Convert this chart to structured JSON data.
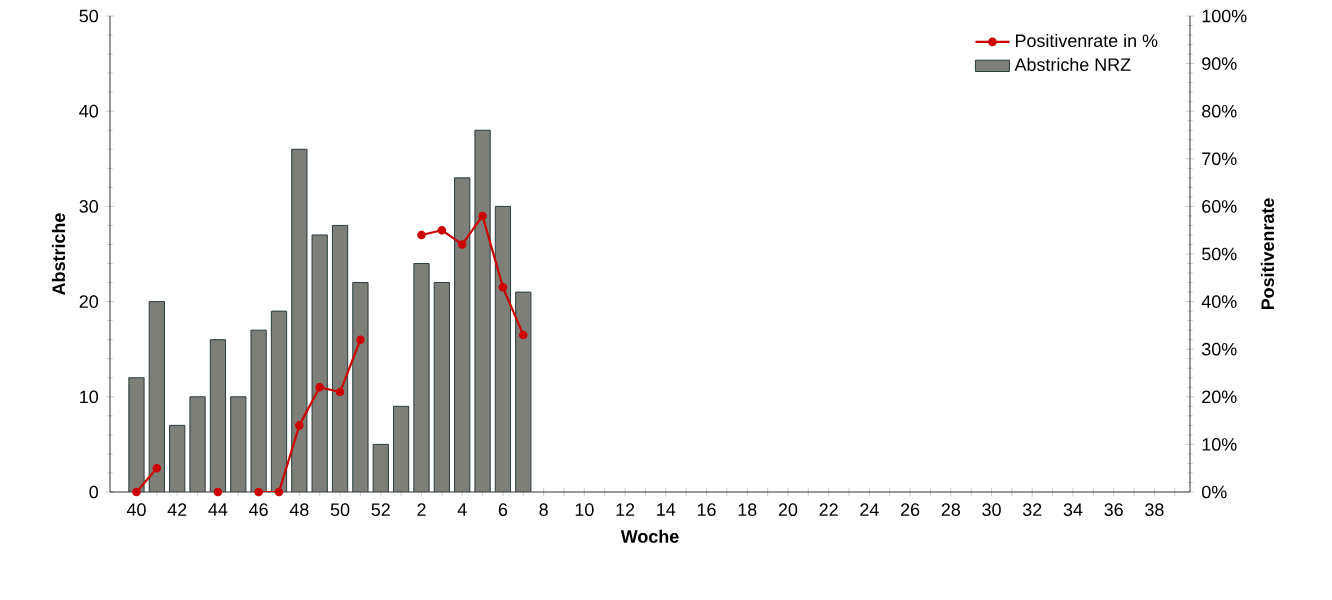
{
  "chart_data": {
    "type": "bar",
    "xlabel": "Woche",
    "ylabel": "Abstriche",
    "y2label": "Positivenrate",
    "categories": [
      "40",
      null,
      "42",
      null,
      "44",
      null,
      "46",
      null,
      "48",
      null,
      "50",
      null,
      "52",
      null,
      "2",
      null,
      "4",
      null,
      "6",
      null,
      "8",
      null,
      "10",
      null,
      "12",
      null,
      "14",
      null,
      "16",
      null,
      "18",
      null,
      "20",
      null,
      "22",
      null,
      "24",
      null,
      "26",
      null,
      "28",
      null,
      "30",
      null,
      "32",
      null,
      "34",
      null,
      "36",
      null,
      "38",
      null
    ],
    "series": [
      {
        "name": "Positivenrate in %",
        "type": "line",
        "axis": "y2",
        "color": "#cc0000",
        "marker": "circle",
        "values": [
          0,
          5,
          null,
          null,
          0,
          null,
          0,
          0,
          14,
          22,
          21,
          32,
          null,
          null,
          54,
          55,
          52,
          58,
          43,
          33,
          null,
          null,
          null,
          null,
          null,
          null,
          null,
          null,
          null,
          null,
          null,
          null,
          null,
          null,
          null,
          null,
          null,
          null,
          null,
          null,
          null,
          null,
          null,
          null,
          null,
          null,
          null,
          null,
          null,
          null,
          null,
          null
        ]
      },
      {
        "name": "Abstriche NRZ",
        "color": "#7e7f78",
        "values": [
          12,
          20,
          7,
          10,
          16,
          10,
          17,
          19,
          36,
          27,
          28,
          22,
          5,
          9,
          24,
          22,
          33,
          38,
          30,
          21,
          null,
          null,
          null,
          null,
          null,
          null,
          null,
          null,
          null,
          null,
          null,
          null,
          null,
          null,
          null,
          null,
          null,
          null,
          null,
          null,
          null,
          null,
          null,
          null,
          null,
          null,
          null,
          null,
          null,
          null,
          null,
          null
        ]
      }
    ],
    "ylim": [
      0,
      50
    ],
    "yticks": [
      0,
      10,
      20,
      30,
      40,
      50
    ],
    "y2lim": [
      0,
      100
    ],
    "y2ticks": [
      {
        "value": 0,
        "label": "0%"
      },
      {
        "value": 10,
        "label": "10%"
      },
      {
        "value": 20,
        "label": "20%"
      },
      {
        "value": 30,
        "label": "30%"
      },
      {
        "value": 40,
        "label": "40%"
      },
      {
        "value": 50,
        "label": "50%"
      },
      {
        "value": 60,
        "label": "60%"
      },
      {
        "value": 70,
        "label": "70%"
      },
      {
        "value": 80,
        "label": "80%"
      },
      {
        "value": 90,
        "label": "90%"
      },
      {
        "value": 100,
        "label": "100%"
      }
    ],
    "legend": "top right"
  }
}
